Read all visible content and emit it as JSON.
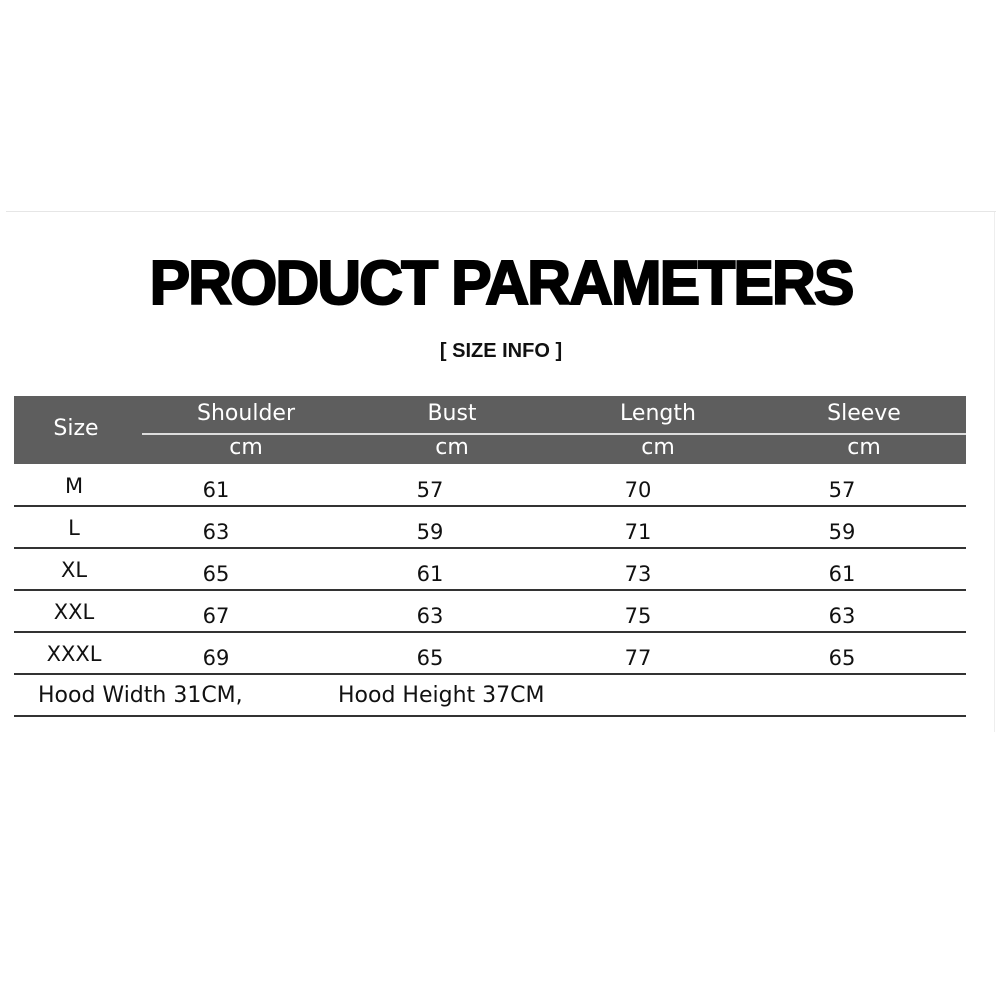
{
  "title": "PRODUCT PARAMETERS",
  "subtitle": "[ SIZE  INFO ]",
  "colors": {
    "header_bg": "#5e5e5e",
    "header_text": "#ffffff"
  },
  "table": {
    "size_header": "Size",
    "columns": [
      {
        "label": "Shoulder",
        "unit": "cm"
      },
      {
        "label": "Bust",
        "unit": "cm"
      },
      {
        "label": "Length",
        "unit": "cm"
      },
      {
        "label": "Sleeve",
        "unit": "cm"
      }
    ],
    "rows": [
      {
        "size": "M",
        "values": [
          "61",
          "57",
          "70",
          "57"
        ]
      },
      {
        "size": "L",
        "values": [
          "63",
          "59",
          "71",
          "59"
        ]
      },
      {
        "size": "XL",
        "values": [
          "65",
          "61",
          "73",
          "61"
        ]
      },
      {
        "size": "XXL",
        "values": [
          "67",
          "63",
          "75",
          "63"
        ]
      },
      {
        "size": "XXXL",
        "values": [
          "69",
          "65",
          "77",
          "65"
        ]
      }
    ]
  },
  "notes": {
    "hood_width": "Hood Width 31CM,",
    "hood_height": "Hood Height 37CM"
  }
}
